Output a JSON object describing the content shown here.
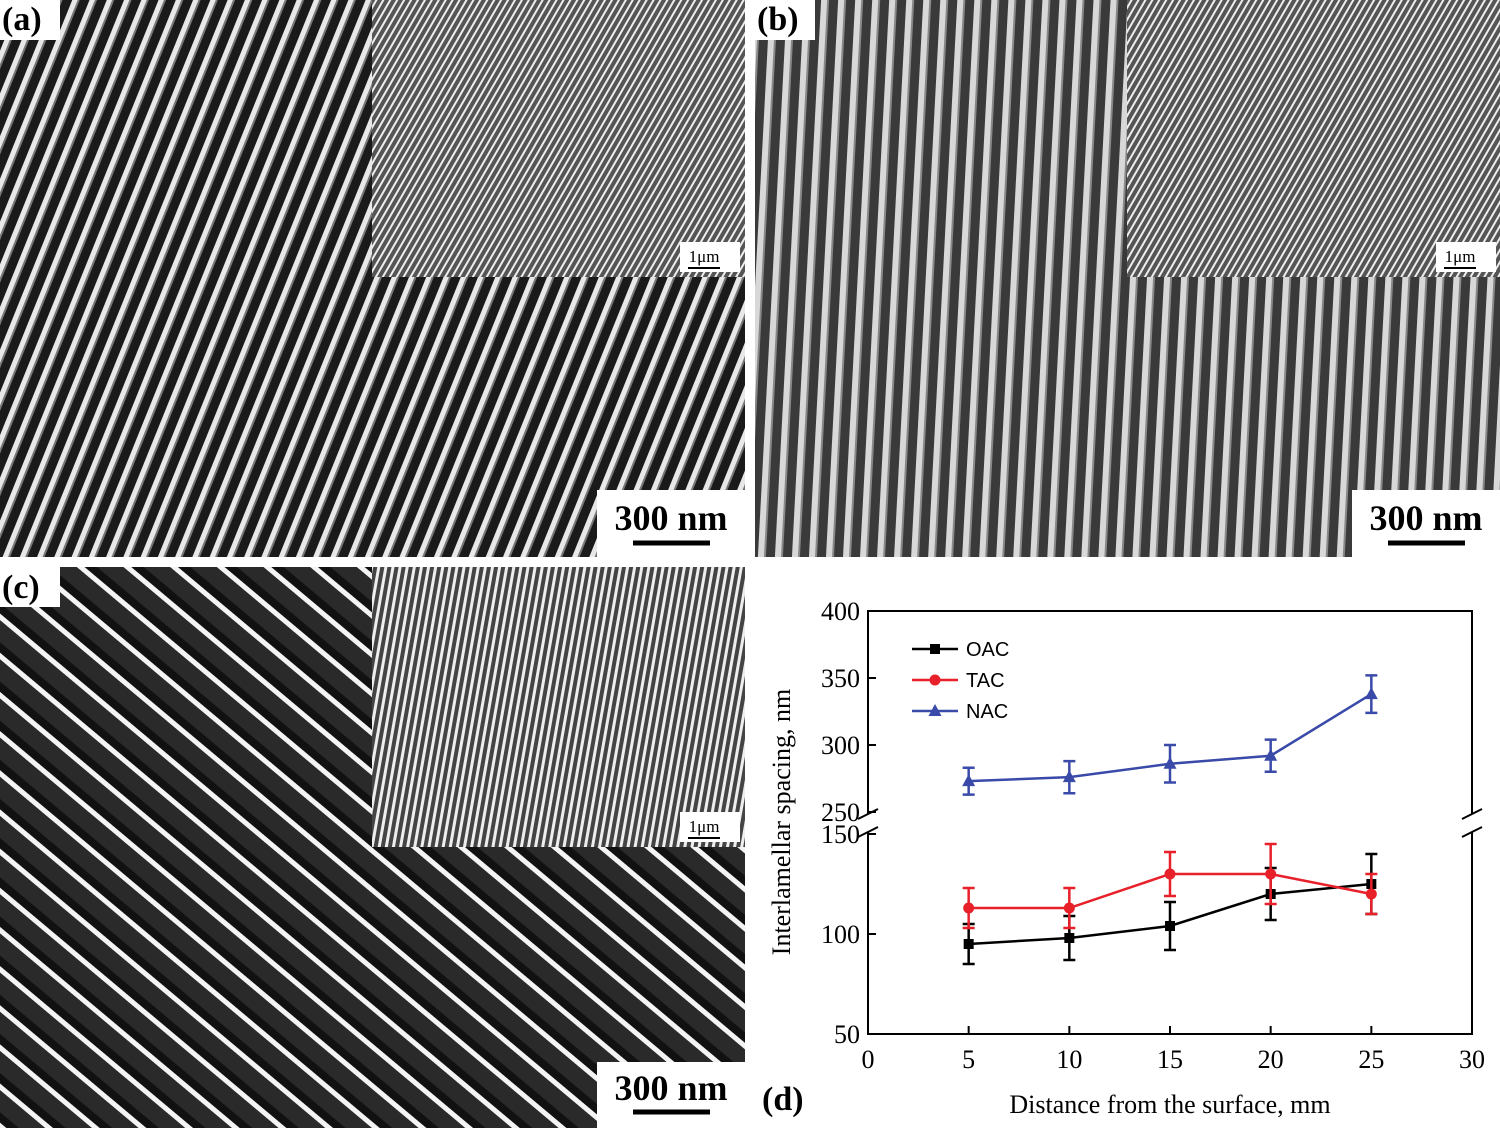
{
  "panels": [
    {
      "label": "(a)",
      "scale_bar": "300 nm",
      "inset_scale": "1μm"
    },
    {
      "label": "(b)",
      "scale_bar": "300 nm",
      "inset_scale": "1μm"
    },
    {
      "label": "(c)",
      "scale_bar": "300 nm",
      "inset_scale": "1μm"
    },
    {
      "label": "(d)"
    }
  ],
  "chart_data": {
    "type": "line",
    "xlabel": "Distance from the surface, mm",
    "ylabel": "Interlamellar spacing, nm",
    "x": [
      5,
      10,
      15,
      20,
      25
    ],
    "xlim": [
      0,
      30
    ],
    "xticks": [
      0,
      5,
      10,
      15,
      20,
      25,
      30
    ],
    "ylim": [
      50,
      400
    ],
    "ybreak": [
      150,
      250
    ],
    "yticks": [
      50,
      100,
      150,
      250,
      300,
      350,
      400
    ],
    "legend": "upper left",
    "series": [
      {
        "name": "OAC",
        "color": "#000000",
        "marker": "square",
        "values": [
          95,
          98,
          104,
          120,
          125
        ],
        "errors": [
          10,
          11,
          12,
          13,
          15
        ]
      },
      {
        "name": "TAC",
        "color": "#e8202a",
        "marker": "circle",
        "values": [
          113,
          113,
          130,
          130,
          120
        ],
        "errors": [
          10,
          10,
          11,
          15,
          10
        ]
      },
      {
        "name": "NAC",
        "color": "#3a4aa8",
        "marker": "triangle",
        "values": [
          273,
          276,
          286,
          292,
          338
        ],
        "errors": [
          10,
          12,
          14,
          12,
          14
        ]
      }
    ]
  }
}
